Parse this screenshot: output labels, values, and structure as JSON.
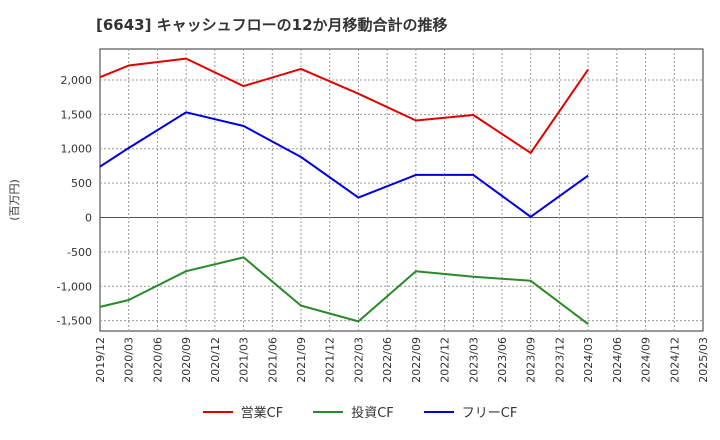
{
  "chart_data": {
    "type": "line",
    "title": "[6643]  キャッシュフローの12か月移動合計の推移",
    "ylabel": "(百万円)",
    "xlabel": "",
    "ylim": [
      -1650,
      2450
    ],
    "yticks": [
      2000,
      1500,
      1000,
      500,
      0,
      -500,
      -1000,
      -1500
    ],
    "ytick_labels": [
      "2,000",
      "1,500",
      "1,000",
      "500",
      "0",
      "-500",
      "-1,000",
      "-1,500"
    ],
    "x_ticks": [
      "2019/12",
      "2020/03",
      "2020/06",
      "2020/09",
      "2020/12",
      "2021/03",
      "2021/06",
      "2021/09",
      "2021/12",
      "2022/03",
      "2022/06",
      "2022/09",
      "2022/12",
      "2023/03",
      "2023/06",
      "2023/09",
      "2023/12",
      "2024/03",
      "2024/06",
      "2024/09",
      "2024/12",
      "2025/03"
    ],
    "grid": true,
    "legend_position": "bottom",
    "series": [
      {
        "name": "営業CF",
        "color": "#e00000",
        "x": [
          "2019/12",
          "2020/03",
          "2020/09",
          "2021/03",
          "2021/09",
          "2022/03",
          "2022/09",
          "2023/03",
          "2023/09",
          "2024/03"
        ],
        "values": [
          2040,
          2210,
          2310,
          1910,
          2160,
          1800,
          1410,
          1490,
          940,
          2150
        ]
      },
      {
        "name": "投資CF",
        "color": "#2a8a2a",
        "x": [
          "2019/12",
          "2020/03",
          "2020/09",
          "2021/03",
          "2021/09",
          "2022/03",
          "2022/09",
          "2023/03",
          "2023/09",
          "2024/03"
        ],
        "values": [
          -1300,
          -1200,
          -780,
          -580,
          -1280,
          -1510,
          -780,
          -860,
          -920,
          -1550
        ]
      },
      {
        "name": "フリーCF",
        "color": "#0000dd",
        "x": [
          "2019/12",
          "2020/03",
          "2020/09",
          "2021/03",
          "2021/09",
          "2022/03",
          "2022/09",
          "2023/03",
          "2023/09",
          "2024/03"
        ],
        "values": [
          740,
          1010,
          1530,
          1330,
          880,
          290,
          620,
          620,
          10,
          610
        ]
      }
    ]
  }
}
